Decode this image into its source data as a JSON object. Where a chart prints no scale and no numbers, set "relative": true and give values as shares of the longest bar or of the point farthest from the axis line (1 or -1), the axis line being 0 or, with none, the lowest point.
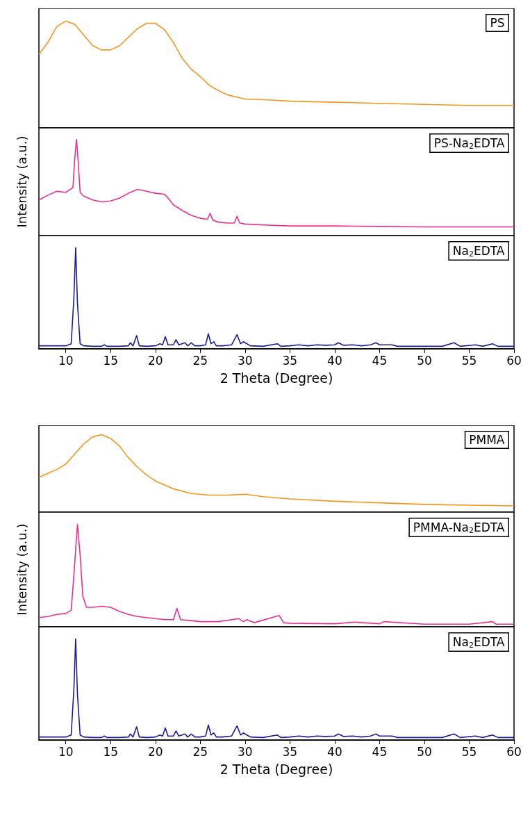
{
  "chart_data": [
    {
      "type": "line",
      "relative": true,
      "xlim": [
        7,
        60
      ],
      "xticks": [
        10,
        15,
        20,
        25,
        30,
        35,
        40,
        45,
        50,
        55,
        60
      ],
      "tick_labels": false,
      "series": [
        {
          "name": "PS",
          "color": "#f7941d",
          "x": [
            7,
            8,
            9,
            10,
            11,
            12,
            13,
            14,
            15,
            16,
            17,
            18,
            19,
            20,
            21,
            22,
            23,
            24,
            25,
            26,
            27,
            28,
            29,
            30,
            33,
            35,
            40,
            45,
            50,
            55,
            60
          ],
          "values": [
            0.69,
            0.8,
            0.95,
            1.0,
            0.97,
            0.87,
            0.77,
            0.73,
            0.73,
            0.77,
            0.85,
            0.93,
            0.98,
            0.98,
            0.92,
            0.8,
            0.65,
            0.55,
            0.48,
            0.4,
            0.35,
            0.31,
            0.29,
            0.27,
            0.26,
            0.25,
            0.24,
            0.23,
            0.22,
            0.21,
            0.21
          ]
        }
      ]
    },
    {
      "type": "line",
      "relative": true,
      "xlim": [
        7,
        60
      ],
      "xticks": [
        10,
        15,
        20,
        25,
        30,
        35,
        40,
        45,
        50,
        55,
        60
      ],
      "tick_labels": false,
      "ylabel": "Intensity (a.u.)",
      "series": [
        {
          "name": "PS-Na$_{2}$EDTA",
          "color": "#ec2f8f",
          "x": [
            7,
            8,
            9,
            10,
            10.8,
            11.0,
            11.2,
            11.4,
            11.6,
            12,
            13,
            14,
            15,
            16,
            17,
            18,
            19,
            20,
            21,
            21.5,
            22,
            23,
            24,
            25,
            25.8,
            26.1,
            26.4,
            27,
            28,
            28.8,
            29.1,
            29.4,
            30,
            32,
            35,
            40,
            45,
            50,
            55,
            60
          ],
          "values": [
            0.37,
            0.42,
            0.46,
            0.45,
            0.5,
            0.8,
            1.0,
            0.75,
            0.45,
            0.41,
            0.37,
            0.35,
            0.36,
            0.39,
            0.44,
            0.48,
            0.46,
            0.44,
            0.43,
            0.38,
            0.32,
            0.26,
            0.21,
            0.18,
            0.17,
            0.23,
            0.16,
            0.14,
            0.13,
            0.13,
            0.2,
            0.13,
            0.12,
            0.11,
            0.1,
            0.1,
            0.095,
            0.09,
            0.09,
            0.09
          ]
        }
      ]
    },
    {
      "type": "line",
      "relative": true,
      "xlim": [
        7,
        60
      ],
      "xticks": [
        10,
        15,
        20,
        25,
        30,
        35,
        40,
        45,
        50,
        55,
        60
      ],
      "tick_labels": "x",
      "xlabel": "2 Theta (Degree)",
      "series": [
        {
          "name": "Na$_{2}$EDTA",
          "color": "#1a1a9c",
          "x": [
            7,
            8,
            9,
            10,
            10.6,
            10.9,
            11.1,
            11.3,
            11.6,
            12,
            13,
            14,
            14.3,
            14.6,
            16,
            17,
            17.2,
            17.5,
            17.9,
            18.2,
            19,
            20,
            20.5,
            20.8,
            21.1,
            21.4,
            22,
            22.3,
            22.6,
            23.3,
            23.6,
            24,
            24.4,
            25,
            25.6,
            25.9,
            26.2,
            26.5,
            26.8,
            27.5,
            28.5,
            29.1,
            29.5,
            29.8,
            30.2,
            30.6,
            32,
            33.6,
            34,
            35,
            36,
            37,
            38,
            39,
            40,
            40.4,
            41,
            42,
            43,
            44,
            44.6,
            45,
            46.4,
            47,
            48,
            50,
            52,
            53.3,
            54,
            55.7,
            56.5,
            57.6,
            58.2,
            60
          ],
          "values": [
            0.03,
            0.03,
            0.03,
            0.03,
            0.05,
            0.5,
            1.0,
            0.45,
            0.05,
            0.03,
            0.025,
            0.025,
            0.04,
            0.025,
            0.025,
            0.03,
            0.06,
            0.03,
            0.13,
            0.03,
            0.025,
            0.03,
            0.05,
            0.04,
            0.12,
            0.04,
            0.04,
            0.09,
            0.04,
            0.06,
            0.03,
            0.06,
            0.03,
            0.03,
            0.04,
            0.15,
            0.05,
            0.07,
            0.03,
            0.03,
            0.04,
            0.14,
            0.05,
            0.07,
            0.05,
            0.03,
            0.025,
            0.05,
            0.025,
            0.03,
            0.04,
            0.03,
            0.04,
            0.035,
            0.04,
            0.06,
            0.035,
            0.04,
            0.03,
            0.04,
            0.06,
            0.04,
            0.04,
            0.025,
            0.025,
            0.025,
            0.025,
            0.06,
            0.025,
            0.04,
            0.025,
            0.05,
            0.025,
            0.025
          ]
        }
      ]
    },
    {
      "type": "line",
      "relative": true,
      "xlim": [
        7,
        60
      ],
      "xticks": [
        10,
        15,
        20,
        25,
        30,
        35,
        40,
        45,
        50,
        55,
        60
      ],
      "tick_labels": false,
      "series": [
        {
          "name": "PMMA",
          "color": "#f7941d",
          "x": [
            7,
            8,
            9,
            10,
            11,
            12,
            13,
            14,
            15,
            16,
            17,
            18,
            19,
            20,
            22,
            24,
            26,
            28,
            30,
            32,
            35,
            40,
            45,
            50,
            55,
            60
          ],
          "values": [
            0.45,
            0.5,
            0.55,
            0.62,
            0.75,
            0.88,
            0.97,
            1.0,
            0.95,
            0.85,
            0.7,
            0.58,
            0.48,
            0.4,
            0.3,
            0.24,
            0.22,
            0.22,
            0.23,
            0.2,
            0.17,
            0.14,
            0.12,
            0.1,
            0.09,
            0.08
          ]
        }
      ]
    },
    {
      "type": "line",
      "relative": true,
      "xlim": [
        7,
        60
      ],
      "xticks": [
        10,
        15,
        20,
        25,
        30,
        35,
        40,
        45,
        50,
        55,
        60
      ],
      "tick_labels": false,
      "ylabel": "Intensity (a.u.)",
      "series": [
        {
          "name": "PMMA-Na$_{2}$EDTA",
          "color": "#ec2f8f",
          "x": [
            7,
            8,
            9,
            10,
            10.6,
            10.9,
            11.3,
            11.6,
            11.9,
            12.3,
            13,
            14,
            15,
            16,
            17,
            18,
            19,
            20,
            21,
            22,
            22.4,
            22.8,
            24,
            25,
            27,
            29.3,
            29.8,
            30.2,
            31,
            33.8,
            34.3,
            35,
            40,
            42.2,
            45,
            45.5,
            50,
            55,
            57.6,
            58,
            60
          ],
          "values": [
            0.09,
            0.1,
            0.12,
            0.13,
            0.16,
            0.5,
            1.0,
            0.7,
            0.3,
            0.19,
            0.19,
            0.2,
            0.19,
            0.15,
            0.12,
            0.1,
            0.09,
            0.08,
            0.07,
            0.07,
            0.18,
            0.07,
            0.06,
            0.05,
            0.05,
            0.08,
            0.05,
            0.07,
            0.04,
            0.11,
            0.04,
            0.035,
            0.03,
            0.045,
            0.03,
            0.05,
            0.025,
            0.025,
            0.05,
            0.025,
            0.025
          ]
        }
      ]
    },
    {
      "type": "line",
      "relative": true,
      "xlim": [
        7,
        60
      ],
      "xticks": [
        10,
        15,
        20,
        25,
        30,
        35,
        40,
        45,
        50,
        55,
        60
      ],
      "tick_labels": "x",
      "xlabel": "2 Theta (Degree)",
      "series": [
        {
          "name": "Na$_{2}$EDTA",
          "color": "#1a1a9c",
          "x": [
            7,
            8,
            9,
            10,
            10.6,
            10.9,
            11.1,
            11.3,
            11.6,
            12,
            13,
            14,
            14.3,
            14.6,
            16,
            17,
            17.2,
            17.5,
            17.9,
            18.2,
            19,
            20,
            20.5,
            20.8,
            21.1,
            21.4,
            22,
            22.3,
            22.6,
            23.3,
            23.6,
            24,
            24.4,
            25,
            25.6,
            25.9,
            26.2,
            26.5,
            26.8,
            27.5,
            28.5,
            29.1,
            29.5,
            29.8,
            30.2,
            30.6,
            32,
            33.6,
            34,
            35,
            36,
            37,
            38,
            39,
            40,
            40.4,
            41,
            42,
            43,
            44,
            44.6,
            45,
            46.4,
            47,
            48,
            50,
            52,
            53.3,
            54,
            55.7,
            56.5,
            57.6,
            58.2,
            60
          ],
          "values": [
            0.03,
            0.03,
            0.03,
            0.03,
            0.05,
            0.5,
            1.0,
            0.45,
            0.05,
            0.03,
            0.025,
            0.025,
            0.04,
            0.025,
            0.025,
            0.03,
            0.06,
            0.03,
            0.13,
            0.03,
            0.025,
            0.03,
            0.05,
            0.04,
            0.12,
            0.04,
            0.04,
            0.09,
            0.04,
            0.06,
            0.03,
            0.06,
            0.03,
            0.03,
            0.04,
            0.15,
            0.05,
            0.07,
            0.03,
            0.03,
            0.04,
            0.14,
            0.05,
            0.07,
            0.05,
            0.03,
            0.025,
            0.05,
            0.025,
            0.03,
            0.04,
            0.03,
            0.04,
            0.035,
            0.04,
            0.06,
            0.035,
            0.04,
            0.03,
            0.04,
            0.06,
            0.04,
            0.04,
            0.025,
            0.025,
            0.025,
            0.025,
            0.06,
            0.025,
            0.04,
            0.025,
            0.05,
            0.025,
            0.025
          ]
        }
      ]
    }
  ]
}
